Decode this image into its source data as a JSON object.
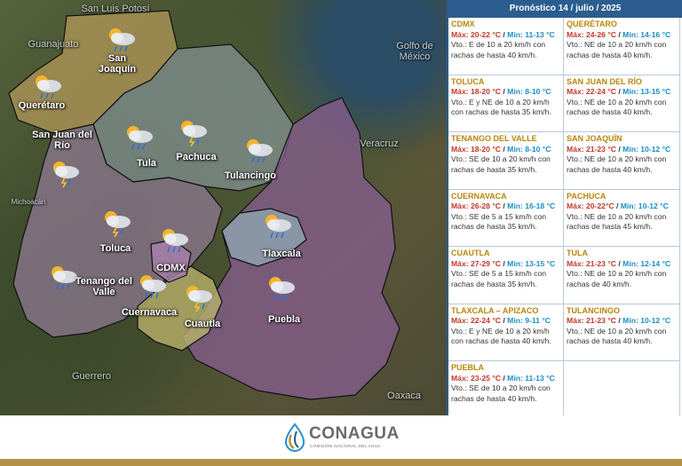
{
  "map": {
    "state_labels": {
      "san_luis_potosi": "San Luis Potosí",
      "guanajuato": "Guanajuato",
      "golfo": "Golfo de México",
      "veracruz": "Veracruz",
      "michoacan": "Michoacán",
      "guerrero": "Guerrero",
      "oaxaca": "Oaxaca"
    },
    "city_labels": {
      "san_joaquin": "San Joaquín",
      "queretaro": "Querétaro",
      "san_juan_del_rio": "San Juan del Río",
      "tula": "Tula",
      "pachuca": "Pachuca",
      "tulancingo": "Tulancingo",
      "toluca": "Toluca",
      "cdmx": "CDMX",
      "tlaxcala": "Tlaxcala",
      "tenango": "Tenango del Valle",
      "cuernavaca": "Cuernavaca",
      "cuautla": "Cuautla",
      "puebla": "Puebla"
    },
    "region_colors": {
      "queretaro": "#b39a5a",
      "hidalgo": "#8a9aa0",
      "edomex": "#9a7fa0",
      "puebla": "#8c5e97",
      "tlaxcala": "#8fa4b0",
      "morelos": "#b7b06a",
      "cdmx": "#a67fa8"
    }
  },
  "panel": {
    "header": "Pronóstico 14 / julio / 2025",
    "rows": [
      [
        {
          "name": "CDMX",
          "max": "Máx: 20-22 °C",
          "min": "Min: 11-13 °C",
          "wind": "Vto.: E de 10 a 20 km/h con rachas de hasta 40 km/h."
        },
        {
          "name": "QUERÉTARO",
          "max": "Máx: 24-26 °C",
          "min": "Min: 14-16 °C",
          "wind": "Vto.: NE de 10 a 20 km/h con rachas de hasta 40 km/h."
        }
      ],
      [
        {
          "name": "TOLUCA",
          "max": "Máx: 18-20 °C",
          "min": "Min: 8-10 °C",
          "wind": "Vto.: E y NE de 10 a 20 km/h con rachas de hasta 35 km/h."
        },
        {
          "name": "SAN JUAN DEL RÍO",
          "max": "Máx: 22-24 °C",
          "min": "Min: 13-15 °C",
          "wind": "Vto.: NE de 10 a 20 km/h con rachas de hasta 40 km/h."
        }
      ],
      [
        {
          "name": "TENANGO DEL VALLE",
          "max": "Máx: 18-20 °C",
          "min": "Min: 8-10 °C",
          "wind": "Vto.: SE de 10 a 20 km/h con rachas de hasta 35 km/h."
        },
        {
          "name": "SAN JOAQUÍN",
          "max": "Máx: 21-23 °C",
          "min": "Min: 10-12 °C",
          "wind": "Vto.: NE de 10 a 20 km/h con rachas de hasta 40 km/h."
        }
      ],
      [
        {
          "name": "CUERNAVACA",
          "max": "Máx: 26-28 °C",
          "min": "Min: 16-18 °C",
          "wind": "Vto.: SE de 5 a 15 km/h con rachas de hasta 35 km/h."
        },
        {
          "name": "PACHUCA",
          "max": "Máx: 20-22°C",
          "min": "Min: 10-12 °C",
          "wind": "Vto.: NE de 10 a 20 km/h con rachas de hasta 45 km/h."
        }
      ],
      [
        {
          "name": "CUAUTLA",
          "max": "Máx: 27-29 °C",
          "min": "Min: 13-15 °C",
          "wind": "Vto.: SE de 5 a 15 km/h con rachas de hasta 35 km/h."
        },
        {
          "name": "TULA",
          "max": "Máx: 21-23 °C",
          "min": "Min: 12-14 °C",
          "wind": "Vto.: NE de 10 a 20 km/h con rachas de 40 km/h."
        }
      ],
      [
        {
          "name": "TLAXCALA – APIZACO",
          "max": "Máx: 22-24 °C",
          "min": "Min: 9-11 °C",
          "wind": "Vto.: E y NE de 10 a 20 km/h con rachas de hasta 40 km/h."
        },
        {
          "name": "TULANCINGO",
          "max": "Máx: 21-23 °C",
          "min": "Min: 10-12 °C",
          "wind": "Vto.: NE de 10 a 20 km/h con rachas de hasta 40 km/h."
        }
      ],
      [
        {
          "name": "PUEBLA",
          "max": "Máx: 23-25 °C",
          "min": "Min: 11-13 °C",
          "wind": "Vto.: SE de 10 a 20 km/h con rachas de hasta 40 km/h."
        },
        {
          "name": "",
          "max": "",
          "min": "",
          "wind": ""
        }
      ]
    ]
  },
  "footer": {
    "logo_text": "CONAGUA",
    "logo_sub": "COMISIÓN NACIONAL DEL AGUA",
    "bar_color": "#b29345"
  }
}
